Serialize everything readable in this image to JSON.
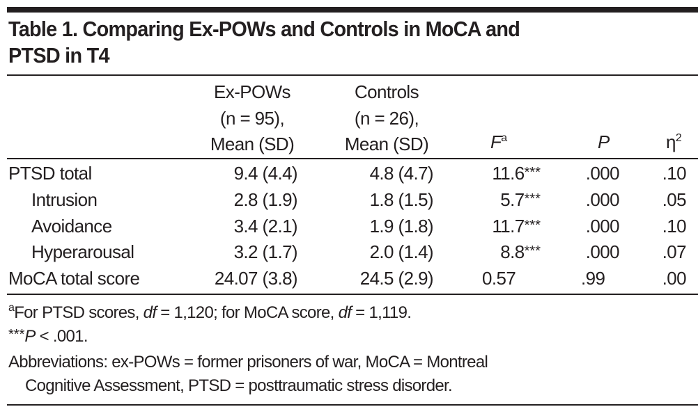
{
  "table": {
    "title_line1": "Table 1. Comparing Ex-POWs and Controls in MoCA and",
    "title_line2": "PTSD in T4",
    "headers": {
      "ex_pows": {
        "line1": "Ex-POWs",
        "line2": "(n = 95),",
        "line3": "Mean (SD)"
      },
      "controls": {
        "line1": "Controls",
        "line2": "(n = 26),",
        "line3": "Mean (SD)"
      },
      "f": {
        "label": "F",
        "sup": "a"
      },
      "p": {
        "label": "P"
      },
      "eta": {
        "label": "η",
        "sup": "2"
      }
    },
    "rows": [
      {
        "label": "PTSD total",
        "ex_pows": "9.4 (4.4)",
        "controls": "4.8 (4.7)",
        "f": "11.6",
        "stars": "***",
        "p": ".000",
        "eta": ".10"
      },
      {
        "label": "Intrusion",
        "ex_pows": "2.8 (1.9)",
        "controls": "1.8 (1.5)",
        "f": "5.7",
        "stars": "***",
        "p": ".000",
        "eta": ".05"
      },
      {
        "label": "Avoidance",
        "ex_pows": "3.4 (2.1)",
        "controls": "1.9 (1.8)",
        "f": "11.7",
        "stars": "***",
        "p": ".000",
        "eta": ".10"
      },
      {
        "label": "Hyperarousal",
        "ex_pows": "3.2 (1.7)",
        "controls": "2.0 (1.4)",
        "f": "8.8",
        "stars": "***",
        "p": ".000",
        "eta": ".07"
      },
      {
        "label": "MoCA total score",
        "ex_pows": "24.07 (3.8)",
        "controls": "24.5 (2.9)",
        "f": "0.57",
        "stars": "",
        "p": ".99",
        "eta": ".00"
      }
    ],
    "footnotes": {
      "a_sup": "a",
      "a_part1": "For PTSD scores, ",
      "a_df1": "df",
      "a_part2": " = 1,120; for MoCA score, ",
      "a_df2": "df",
      "a_part3": " = 1,119.",
      "sig_stars": "***",
      "sig_p": "P",
      "sig_rest": " < .001.",
      "abbrev_line1": "Abbreviations: ex-POWs = former prisoners of war, MoCA = Montreal",
      "abbrev_line2": "Cognitive Assessment, PTSD = posttraumatic stress disorder."
    }
  }
}
